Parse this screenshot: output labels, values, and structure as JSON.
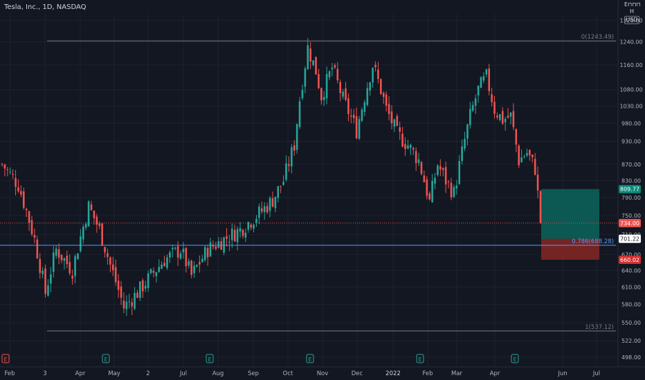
{
  "header": {
    "symbol_title": "Tesla, Inc., 1D, NASDAQ",
    "currency_top": "Ε⊓⊓⊓ Η",
    "currency": "USD"
  },
  "colors": {
    "background": "#131722",
    "up": "#26a69a",
    "down": "#ef5350",
    "grid": "#1e222d",
    "fib_line": "#787b86",
    "fib_786": "#5b9cf6",
    "target_zone": "#0b5d55",
    "stop_zone": "#7a2525"
  },
  "chart_data": {
    "type": "candlestick",
    "title": "Tesla, Inc., 1D, NASDAQ",
    "y_scale": "log",
    "ylim": [
      485,
      1345
    ],
    "y_ticks": [
      1320,
      1240,
      1160,
      1080,
      1030,
      980,
      930,
      870,
      830,
      790,
      750,
      710,
      670,
      640,
      610,
      580,
      550,
      522,
      498
    ],
    "x_tick_labels": [
      "Feb",
      "3",
      "Apr",
      "May",
      "2",
      "Jul",
      "Aug",
      "Sep",
      "Oct",
      "Nov",
      "Dec",
      "2022",
      "Feb",
      "Mar",
      "Apr",
      "Jun",
      "Jul"
    ],
    "earnings_markers": [
      "E",
      "E",
      "E",
      "E",
      "E",
      "E"
    ],
    "price_anchors": [
      [
        0,
        870
      ],
      [
        6,
        820
      ],
      [
        12,
        700
      ],
      [
        16,
        600
      ],
      [
        20,
        680
      ],
      [
        26,
        640
      ],
      [
        32,
        770
      ],
      [
        36,
        720
      ],
      [
        40,
        650
      ],
      [
        45,
        575
      ],
      [
        50,
        600
      ],
      [
        55,
        630
      ],
      [
        60,
        660
      ],
      [
        66,
        680
      ],
      [
        70,
        630
      ],
      [
        76,
        680
      ],
      [
        82,
        700
      ],
      [
        88,
        720
      ],
      [
        92,
        740
      ],
      [
        96,
        760
      ],
      [
        100,
        785
      ],
      [
        104,
        830
      ],
      [
        108,
        920
      ],
      [
        110,
        1050
      ],
      [
        113,
        1220
      ],
      [
        116,
        1140
      ],
      [
        118,
        1060
      ],
      [
        122,
        1150
      ],
      [
        126,
        1050
      ],
      [
        131,
        960
      ],
      [
        134,
        1060
      ],
      [
        137,
        1160
      ],
      [
        140,
        1080
      ],
      [
        142,
        1020
      ],
      [
        146,
        950
      ],
      [
        150,
        920
      ],
      [
        154,
        880
      ],
      [
        158,
        780
      ],
      [
        161,
        870
      ],
      [
        164,
        830
      ],
      [
        167,
        800
      ],
      [
        170,
        900
      ],
      [
        173,
        1000
      ],
      [
        176,
        1080
      ],
      [
        179,
        1120
      ],
      [
        182,
        1020
      ],
      [
        185,
        990
      ],
      [
        188,
        1000
      ],
      [
        191,
        880
      ],
      [
        194,
        900
      ],
      [
        197,
        860
      ],
      [
        199,
        734
      ]
    ],
    "last_price": 734.0,
    "fib_levels": [
      {
        "label": "0(1243.49)",
        "value": 1243.49
      },
      {
        "label": "0.786(688.28)",
        "value": 688.28
      },
      {
        "label": "1(537.12)",
        "value": 537.12
      }
    ],
    "position": {
      "target": 809.77,
      "entry": 701.22,
      "stop": 660.02
    },
    "price_labels": {
      "target": "809.77",
      "last": "734.00",
      "entry": "701.22",
      "stop": "660.02"
    }
  }
}
